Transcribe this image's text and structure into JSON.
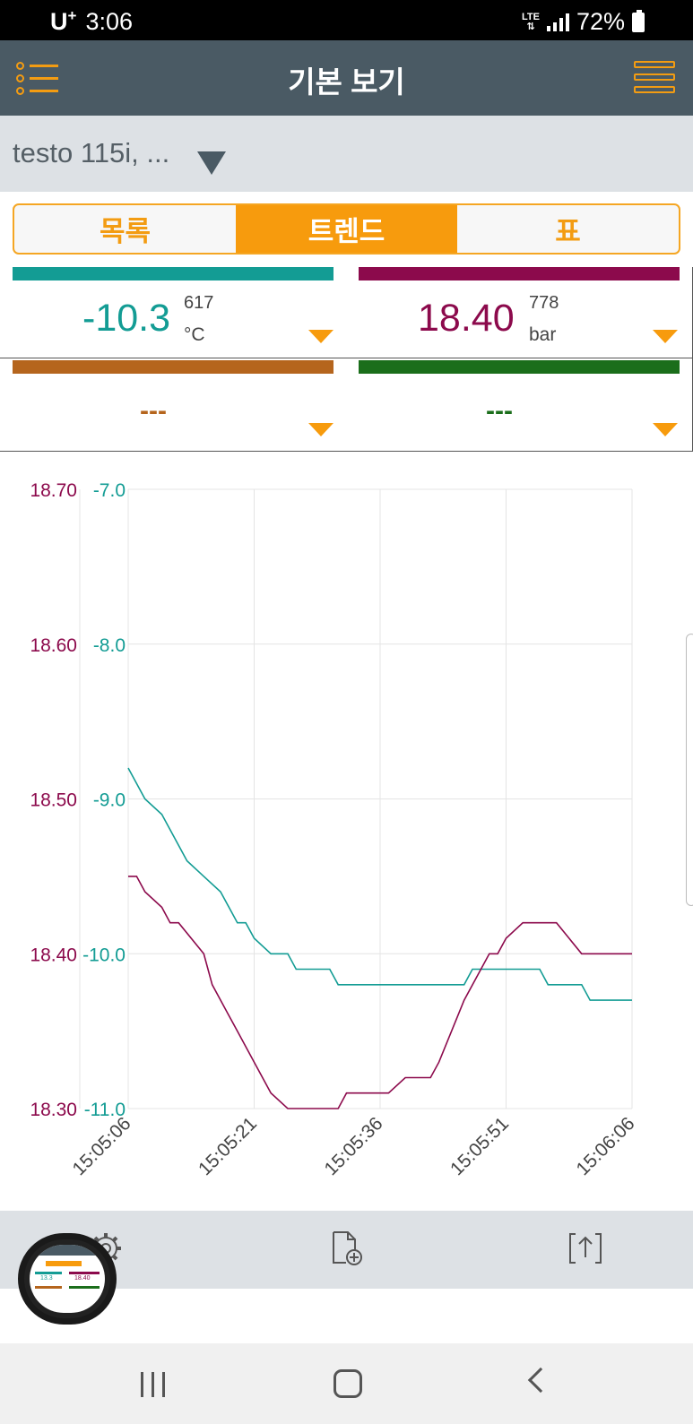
{
  "status_bar": {
    "carrier": "U",
    "carrier_plus": "+",
    "time": "3:06",
    "network": "LTE",
    "battery": "72%"
  },
  "header": {
    "title": "기본 보기",
    "left_icon": "list-icon",
    "right_icon": "menu-icon"
  },
  "device": {
    "name": "testo 115i, ..."
  },
  "tabs": [
    {
      "label": "목록",
      "active": false
    },
    {
      "label": "트렌드",
      "active": true
    },
    {
      "label": "표",
      "active": false
    }
  ],
  "readings": [
    {
      "value": "-10.3",
      "sub": "617",
      "unit": "°C",
      "color": "#139c94"
    },
    {
      "value": "18.40",
      "sub": "778",
      "unit": "bar",
      "color": "#8c0a4c"
    },
    {
      "value": "---",
      "sub": "",
      "unit": "",
      "color": "#b5651d"
    },
    {
      "value": "---",
      "sub": "",
      "unit": "",
      "color": "#1b6e1b"
    }
  ],
  "chart_data": {
    "type": "line",
    "x_ticks": [
      "15:05:06",
      "15:05:21",
      "15:05:36",
      "15:05:51",
      "15:06:06"
    ],
    "x_range_seconds": [
      0,
      60
    ],
    "y_left_outer": {
      "ticks": [
        "18.70",
        "18.60",
        "18.50",
        "18.40",
        "18.30"
      ],
      "range": [
        18.3,
        18.7
      ],
      "color": "#8c0a4c"
    },
    "y_left_inner": {
      "ticks": [
        "-7.0",
        "-8.0",
        "-9.0",
        "-10.0",
        "-11.0"
      ],
      "range": [
        -11.0,
        -7.0
      ],
      "color": "#139c94"
    },
    "grid": true,
    "series": [
      {
        "axis": "inner",
        "color": "#139c94",
        "points": [
          [
            0,
            -8.8
          ],
          [
            2,
            -9.0
          ],
          [
            4,
            -9.1
          ],
          [
            7,
            -9.4
          ],
          [
            9,
            -9.5
          ],
          [
            11,
            -9.6
          ],
          [
            13,
            -9.8
          ],
          [
            14,
            -9.8
          ],
          [
            15,
            -9.9
          ],
          [
            17,
            -10.0
          ],
          [
            19,
            -10.0
          ],
          [
            20,
            -10.1
          ],
          [
            24,
            -10.1
          ],
          [
            25,
            -10.2
          ],
          [
            40,
            -10.2
          ],
          [
            41,
            -10.1
          ],
          [
            49,
            -10.1
          ],
          [
            50,
            -10.2
          ],
          [
            54,
            -10.2
          ],
          [
            55,
            -10.3
          ],
          [
            60,
            -10.3
          ]
        ]
      },
      {
        "axis": "outer",
        "color": "#8c0a4c",
        "points": [
          [
            0,
            18.45
          ],
          [
            1,
            18.45
          ],
          [
            2,
            18.44
          ],
          [
            4,
            18.43
          ],
          [
            5,
            18.42
          ],
          [
            6,
            18.42
          ],
          [
            9,
            18.4
          ],
          [
            10,
            18.38
          ],
          [
            12,
            18.36
          ],
          [
            13,
            18.35
          ],
          [
            15,
            18.33
          ],
          [
            17,
            18.31
          ],
          [
            19,
            18.3
          ],
          [
            25,
            18.3
          ],
          [
            26,
            18.31
          ],
          [
            31,
            18.31
          ],
          [
            33,
            18.32
          ],
          [
            36,
            18.32
          ],
          [
            37,
            18.33
          ],
          [
            40,
            18.37
          ],
          [
            43,
            18.4
          ],
          [
            44,
            18.4
          ],
          [
            45,
            18.41
          ],
          [
            47,
            18.42
          ],
          [
            51,
            18.42
          ],
          [
            54,
            18.4
          ],
          [
            60,
            18.4
          ]
        ]
      }
    ]
  },
  "toolbar": {
    "icons": [
      "gear-icon",
      "add-document-icon",
      "export-icon"
    ]
  },
  "thumb": {
    "left_value": "13.3",
    "right_value": "18.40"
  }
}
